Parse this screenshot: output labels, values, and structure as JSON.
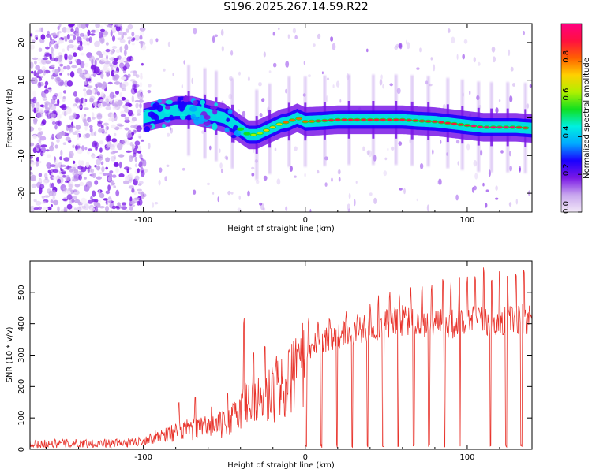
{
  "title": "S196.2025.267.14.59.R22",
  "colors": {
    "background": "#ffffff",
    "axis": "#000000",
    "snr_line": "#e8322a",
    "colormap": [
      "#f2e8f8",
      "#c8a6ee",
      "#7a18e6",
      "#1a00ff",
      "#00aaff",
      "#00f0e0",
      "#10e020",
      "#b0f000",
      "#ffd000",
      "#ff6000",
      "#ff1040",
      "#ff0080"
    ]
  },
  "chart_data": [
    {
      "type": "heatmap",
      "title": "",
      "xlabel": "Height of straight line (km)",
      "ylabel": "Frequency (Hz)",
      "xlim": [
        -170,
        140
      ],
      "ylim": [
        -25,
        25
      ],
      "x_ticks": [
        -100,
        0,
        100
      ],
      "x_tick_labels": [
        "-100",
        "0",
        "100"
      ],
      "y_ticks": [
        -20,
        -10,
        0,
        10,
        20
      ],
      "y_tick_labels": [
        "-20",
        "-10",
        "0",
        "10",
        "20"
      ],
      "colorbar": {
        "label": "Normalized spectral amplitude",
        "range": [
          0,
          1
        ],
        "ticks": [
          0,
          0.2,
          0.4,
          0.6,
          0.8
        ],
        "tick_labels": [
          "0.0",
          "0.2",
          "0.4",
          "0.6",
          "0.8"
        ]
      },
      "ridge": {
        "x": [
          -100,
          -90,
          -80,
          -70,
          -60,
          -50,
          -40,
          -35,
          -30,
          -25,
          -20,
          -15,
          -10,
          -5,
          0,
          10,
          20,
          30,
          40,
          50,
          60,
          70,
          80,
          90,
          100,
          110,
          120,
          130,
          140
        ],
        "freq": [
          0,
          1,
          2,
          2,
          1,
          0,
          -3,
          -4.5,
          -4.5,
          -3.5,
          -2.5,
          -1.5,
          -1,
          0,
          -1,
          -0.8,
          -0.5,
          -0.5,
          -0.5,
          -0.5,
          -0.5,
          -0.8,
          -1,
          -1.5,
          -2,
          -2.5,
          -2.5,
          -2.5,
          -2.8
        ],
        "amplitude": [
          0.3,
          0.35,
          0.4,
          0.4,
          0.35,
          0.3,
          0.5,
          0.6,
          0.65,
          0.7,
          0.75,
          0.75,
          0.8,
          0.8,
          0.85,
          0.88,
          0.9,
          0.9,
          0.92,
          0.95,
          0.95,
          0.92,
          0.9,
          0.95,
          0.95,
          0.98,
          0.98,
          0.95,
          0.9
        ]
      },
      "noise_region_x": [
        -170,
        -100
      ],
      "spike_x": [
        -72,
        -62,
        -55,
        -45,
        -30,
        -22,
        -10,
        0,
        12,
        27,
        42,
        56,
        66,
        76,
        88,
        97,
        107,
        115,
        125,
        136
      ]
    },
    {
      "type": "line",
      "title": "",
      "xlabel": "Height of straight line (km)",
      "ylabel": "SNR (10 * v/v)",
      "xlim": [
        -170,
        140
      ],
      "ylim": [
        0,
        600
      ],
      "x_ticks": [
        -100,
        0,
        100
      ],
      "x_tick_labels": [
        "-100",
        "0",
        "100"
      ],
      "y_ticks": [
        0,
        100,
        200,
        300,
        400,
        500
      ],
      "y_tick_labels": [
        "0",
        "100",
        "200",
        "300",
        "400",
        "500"
      ],
      "series": [
        {
          "name": "SNR",
          "envelope_x": [
            -170,
            -110,
            -100,
            -90,
            -80,
            -70,
            -60,
            -50,
            -45,
            -40,
            -35,
            -30,
            -25,
            -20,
            -15,
            -10,
            -5,
            0,
            5,
            10,
            20,
            30,
            40,
            50,
            60,
            70,
            80,
            90,
            100,
            110,
            120,
            130,
            140
          ],
          "envelope_y": [
            18,
            20,
            28,
            45,
            55,
            65,
            70,
            80,
            95,
            130,
            160,
            150,
            170,
            180,
            200,
            230,
            260,
            300,
            330,
            350,
            360,
            370,
            390,
            400,
            410,
            400,
            400,
            400,
            405,
            410,
            405,
            410,
            420
          ],
          "spike_x": [
            -78,
            -68,
            -58,
            -48,
            -38,
            -32,
            -25,
            -18,
            -10,
            -5,
            2,
            8,
            15,
            25,
            32,
            40,
            45,
            52,
            58,
            65,
            72,
            78,
            85,
            90,
            95,
            100,
            105,
            110,
            115,
            120,
            125,
            130,
            135
          ],
          "spike_y": [
            150,
            170,
            140,
            190,
            430,
            320,
            330,
            300,
            320,
            330,
            420,
            430,
            450,
            460,
            460,
            480,
            500,
            510,
            520,
            525,
            530,
            540,
            545,
            560,
            570,
            575,
            560,
            580,
            570,
            580,
            590,
            570,
            590
          ],
          "dropout_x_start": 0,
          "dropout_spacing": 9.5
        }
      ]
    }
  ]
}
